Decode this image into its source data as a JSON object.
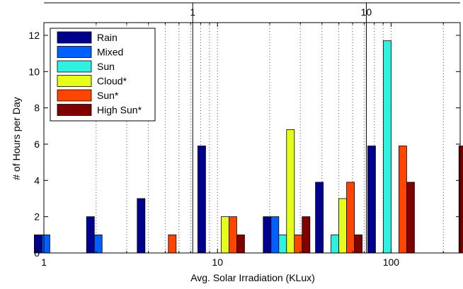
{
  "chart_data": {
    "type": "bar",
    "x_scale": "log",
    "xlabel": "Avg. Solar Irradiation (KLux)",
    "ylabel": "# of Hours per Day",
    "xlim": [
      1,
      250
    ],
    "ylim": [
      0,
      12.7
    ],
    "grid": "vertical dotted (log minor)",
    "legend_position": "top-left",
    "x_ticks": [
      {
        "value": 1,
        "label": "1"
      },
      {
        "value": 10,
        "label": "10"
      },
      {
        "value": 100,
        "label": "100"
      }
    ],
    "y_ticks": [
      {
        "value": 0,
        "label": "0"
      },
      {
        "value": 2,
        "label": "2"
      },
      {
        "value": 4,
        "label": "4"
      },
      {
        "value": 6,
        "label": "6"
      },
      {
        "value": 8,
        "label": "8"
      },
      {
        "value": 10,
        "label": "10"
      },
      {
        "value": 12,
        "label": "12"
      }
    ],
    "top_axis_ticks": [
      {
        "value": 7.2,
        "label": "1"
      },
      {
        "value": 72,
        "label": "10"
      }
    ],
    "bin_centers": [
      1.2,
      2.4,
      4.7,
      10.5,
      25,
      50,
      100,
      200
    ],
    "series": [
      {
        "name": "Rain",
        "color": "#00008f",
        "values": [
          1,
          2,
          3,
          5.9,
          2,
          3.9,
          5.9,
          0
        ]
      },
      {
        "name": "Mixed",
        "color": "#005fff",
        "values": [
          1,
          1,
          0,
          0,
          2,
          0,
          0,
          0
        ]
      },
      {
        "name": "Sun",
        "color": "#30f0e0",
        "values": [
          0,
          0,
          0,
          0,
          1,
          1,
          11.7,
          0
        ]
      },
      {
        "name": "Cloud*",
        "color": "#e5ff1a",
        "values": [
          0,
          0,
          0,
          2,
          6.8,
          3,
          0,
          0
        ]
      },
      {
        "name": "Sun*",
        "color": "#ff4500",
        "values": [
          0,
          0,
          1,
          2,
          1,
          3.9,
          5.9,
          0
        ]
      },
      {
        "name": "High Sun*",
        "color": "#800000",
        "values": [
          0,
          0,
          0,
          1,
          2,
          1,
          3.9,
          5.9
        ]
      }
    ]
  }
}
